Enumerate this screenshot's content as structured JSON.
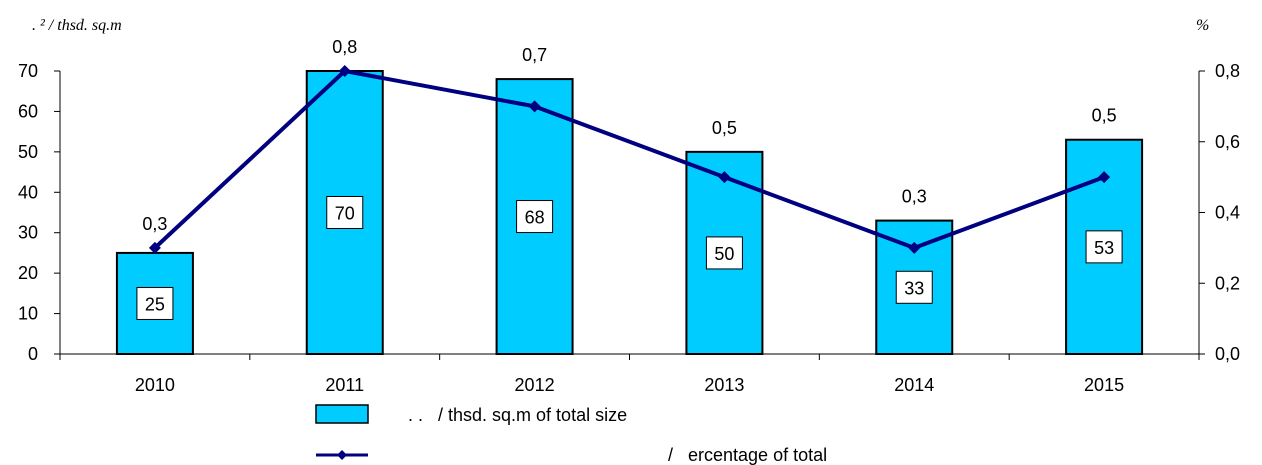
{
  "chart_data": {
    "type": "bar+line",
    "categories": [
      "2010",
      "2011",
      "2012",
      "2013",
      "2014",
      "2015"
    ],
    "series": [
      {
        "name": ". .   / thsd. sq.m of total size",
        "type": "bar",
        "axis": "left",
        "values": [
          25,
          70,
          68,
          50,
          33,
          53
        ],
        "labels": [
          "25",
          "70",
          "68",
          "50",
          "33",
          "53"
        ],
        "color": "#00CCFF"
      },
      {
        "name": "/   ercentage of total",
        "type": "line",
        "axis": "right",
        "values": [
          0.3,
          0.8,
          0.7,
          0.5,
          0.3,
          0.5
        ],
        "labels": [
          "0,3",
          "0,8",
          "0,7",
          "0,5",
          "0,3",
          "0,5"
        ],
        "color": "#000080"
      }
    ],
    "y_left": {
      "unit_label": ".  ² / thsd. sq.m",
      "ylim": [
        0,
        70
      ],
      "ticks": [
        0,
        10,
        20,
        30,
        40,
        50,
        60,
        70
      ],
      "tick_labels": [
        "0",
        "10",
        "20",
        "30",
        "40",
        "50",
        "60",
        "70"
      ]
    },
    "y_right": {
      "unit_label": "%",
      "ylim": [
        0,
        0.8
      ],
      "ticks": [
        0,
        0.2,
        0.4,
        0.6,
        0.8
      ],
      "tick_labels": [
        "0,0",
        "0,2",
        "0,4",
        "0,6",
        "0,8"
      ]
    },
    "grid": false,
    "legend_position": "bottom"
  }
}
